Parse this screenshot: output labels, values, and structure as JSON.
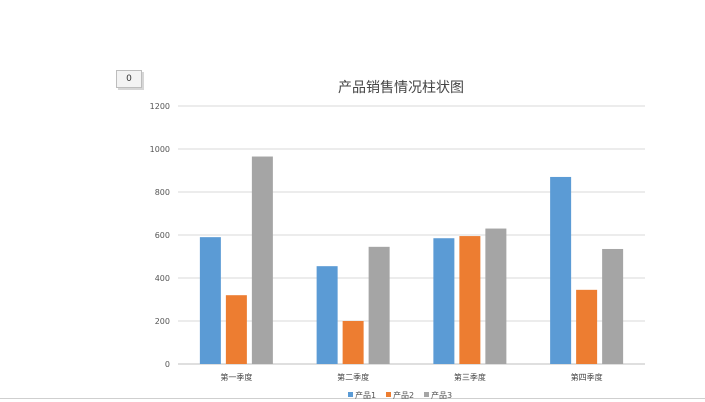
{
  "badge": {
    "value": "0"
  },
  "chart_data": {
    "type": "bar",
    "title": "产品销售情况柱状图",
    "categories": [
      "第一季度",
      "第二季度",
      "第三季度",
      "第四季度"
    ],
    "series": [
      {
        "name": "产品1",
        "color": "#5B9BD5",
        "values": [
          590,
          455,
          585,
          870
        ]
      },
      {
        "name": "产品2",
        "color": "#ED7D31",
        "values": [
          320,
          200,
          595,
          345
        ]
      },
      {
        "name": "产品3",
        "color": "#A5A5A5",
        "values": [
          965,
          545,
          630,
          535
        ]
      }
    ],
    "ylim": [
      0,
      1200
    ],
    "yticks": [
      0,
      200,
      400,
      600,
      800,
      1000,
      1200
    ],
    "grid": true,
    "legend": "bottom"
  }
}
